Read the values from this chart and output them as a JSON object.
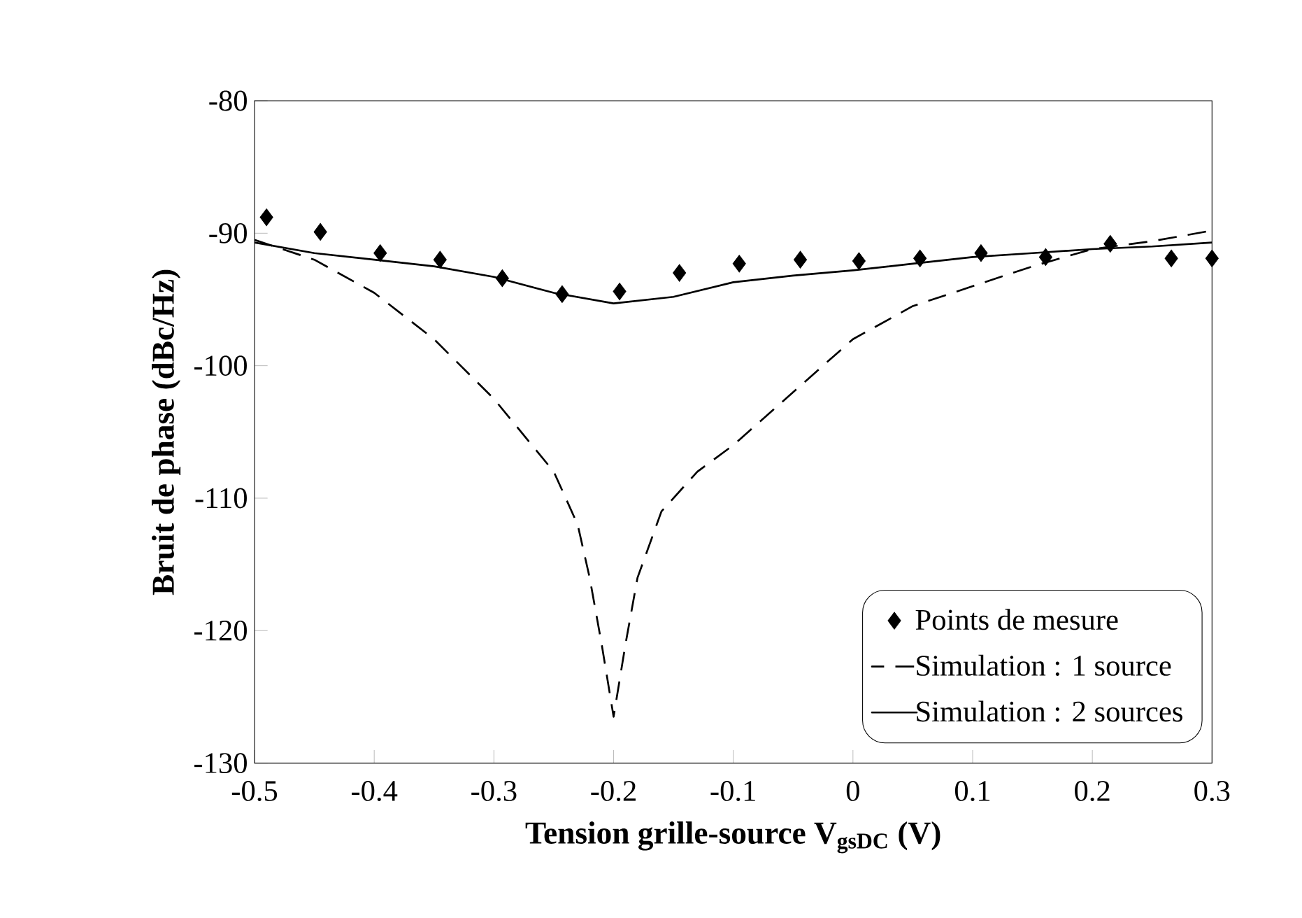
{
  "chart_data": {
    "type": "line",
    "xlabel": "Tension grille-source V$_{gsDC}$ (V)",
    "ylabel": "Bruit de phase (dBc/Hz)",
    "xlim": [
      -0.5,
      0.3
    ],
    "ylim": [
      -130,
      -80
    ],
    "xticks": [
      -0.5,
      -0.4,
      -0.3,
      -0.2,
      -0.1,
      0,
      0.1,
      0.2,
      0.3
    ],
    "yticks": [
      -130,
      -120,
      -110,
      -100,
      -90,
      -80
    ],
    "legend": "bottom right",
    "series": [
      {
        "name": "Points de mesure",
        "type": "scatter",
        "marker": "diamond",
        "color": "#000000",
        "x": [
          -0.49,
          -0.445,
          -0.395,
          -0.345,
          -0.293,
          -0.243,
          -0.195,
          -0.145,
          -0.095,
          -0.044,
          0.005,
          0.056,
          0.107,
          0.161,
          0.215,
          0.266,
          0.3
        ],
        "values": [
          -88.8,
          -89.9,
          -91.5,
          -92,
          -93.4,
          -94.6,
          -94.4,
          -93,
          -92.3,
          -92,
          -92.1,
          -91.9,
          -91.5,
          -91.8,
          -90.8,
          -91.9,
          -91.9
        ]
      },
      {
        "name": "Simulation : 1 source",
        "type": "line",
        "line_style": "dashed",
        "color": "#000000",
        "x": [
          -0.5,
          -0.45,
          -0.4,
          -0.35,
          -0.3,
          -0.25,
          -0.23,
          -0.22,
          -0.21,
          -0.2,
          -0.19,
          -0.18,
          -0.16,
          -0.13,
          -0.1,
          -0.05,
          0,
          0.05,
          0.1,
          0.15,
          0.2,
          0.25,
          0.3
        ],
        "values": [
          -90.5,
          -92,
          -94.5,
          -98,
          -102.5,
          -108,
          -112,
          -116,
          -121,
          -126.5,
          -121,
          -116,
          -111,
          -108,
          -106,
          -102,
          -98,
          -95.5,
          -94,
          -92.5,
          -91.2,
          -90.6,
          -89.8
        ]
      },
      {
        "name": "Simulation : 2 sources",
        "type": "line",
        "line_style": "solid",
        "color": "#000000",
        "x": [
          -0.5,
          -0.45,
          -0.4,
          -0.35,
          -0.3,
          -0.25,
          -0.2,
          -0.15,
          -0.1,
          -0.05,
          0,
          0.05,
          0.1,
          0.15,
          0.2,
          0.25,
          0.3
        ],
        "values": [
          -90.7,
          -91.5,
          -92,
          -92.5,
          -93.3,
          -94.5,
          -95.3,
          -94.8,
          -93.7,
          -93.2,
          -92.8,
          -92.3,
          -91.8,
          -91.5,
          -91.2,
          -91,
          -90.7
        ]
      }
    ]
  }
}
